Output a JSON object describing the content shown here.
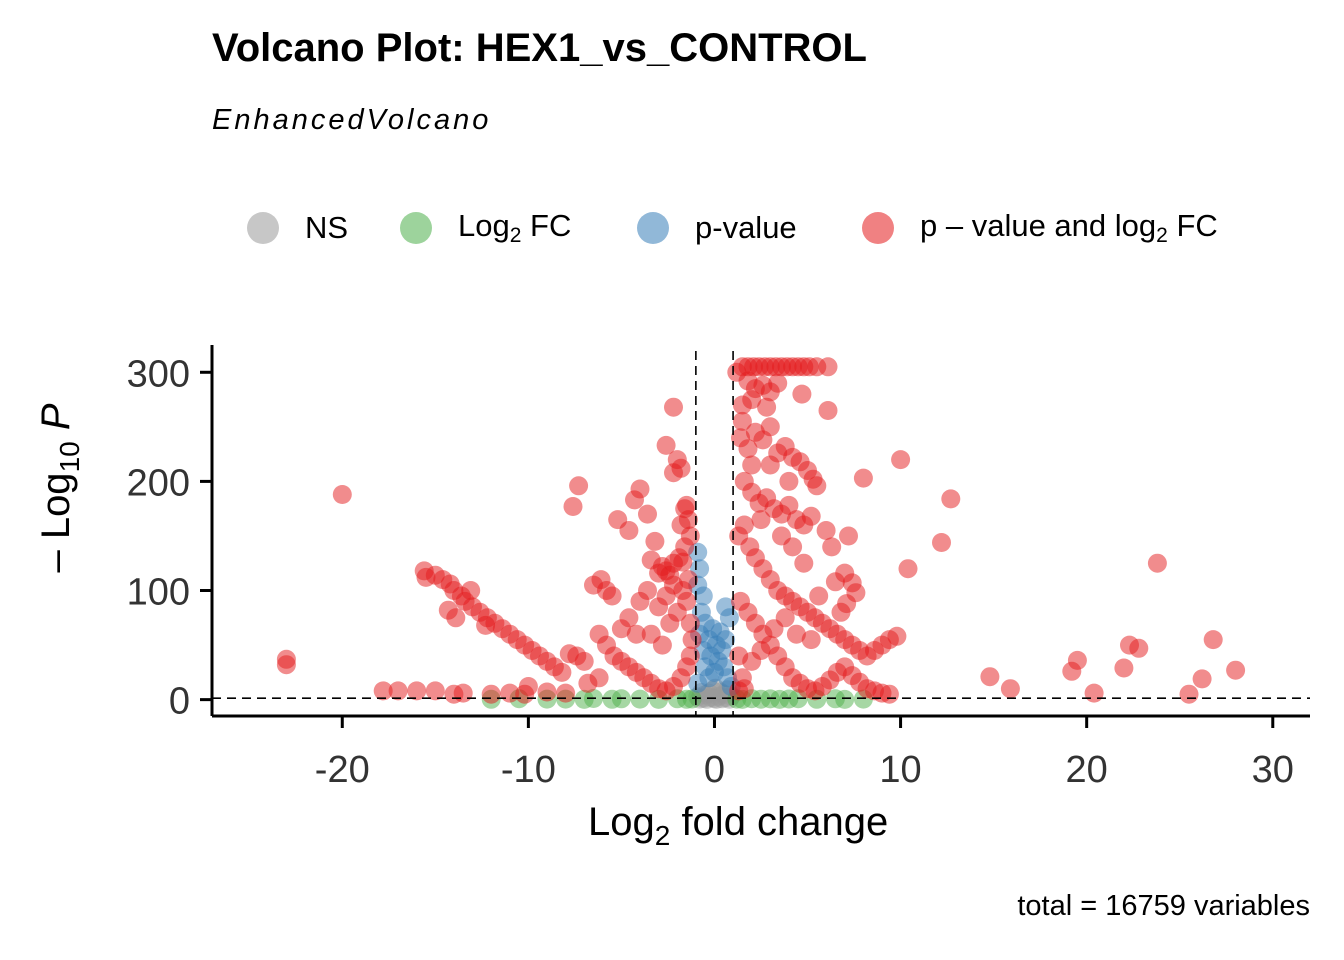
{
  "title": "Volcano Plot: HEX1_vs_CONTROL",
  "subtitle": "EnhancedVolcano",
  "caption": "total = 16759 variables",
  "legend": [
    {
      "key": "ns",
      "label": "NS",
      "color": "#999999"
    },
    {
      "key": "fc",
      "label_main": "Log",
      "label_sub": "2",
      "label_rest": " FC",
      "color": "#4daf4a"
    },
    {
      "key": "p",
      "label": "p-value",
      "color": "#377eb8"
    },
    {
      "key": "pfc",
      "label_main": "p – value and log",
      "label_sub": "2",
      "label_rest": " FC",
      "color": "#e41a1c"
    }
  ],
  "chart_data": {
    "type": "scatter",
    "title": "Volcano Plot: HEX1_vs_CONTROL",
    "subtitle": "EnhancedVolcano",
    "xlabel_main": "Log",
    "xlabel_sub": "2",
    "xlabel_rest": " fold change",
    "ylabel_prefix": "– Log",
    "ylabel_sub": "10",
    "ylabel_var": "P",
    "xlim": [
      -27,
      32
    ],
    "ylim": [
      -15,
      325
    ],
    "xticks": [
      -20,
      -10,
      0,
      10,
      20,
      30
    ],
    "yticks": [
      0,
      100,
      200,
      300
    ],
    "fc_cutoff_lines": [
      -1,
      1
    ],
    "p_cutoff_line": 1.3,
    "grid": false,
    "legend_position": "top",
    "point_opacity": 0.5,
    "series": [
      {
        "name": "NS",
        "color": "#999999",
        "points": [
          [
            -0.8,
            0.5
          ],
          [
            -0.6,
            1.2
          ],
          [
            -0.4,
            0.3
          ],
          [
            -0.2,
            2.0
          ],
          [
            0.0,
            1.0
          ],
          [
            0.2,
            3.0
          ],
          [
            0.4,
            0.8
          ],
          [
            0.6,
            1.8
          ],
          [
            0.8,
            0.4
          ],
          [
            -0.5,
            4.5
          ],
          [
            0.5,
            5.0
          ],
          [
            -0.9,
            2.5
          ],
          [
            0.9,
            3.2
          ],
          [
            -0.3,
            6.0
          ],
          [
            0.3,
            7.0
          ],
          [
            0.1,
            0.2
          ],
          [
            -0.1,
            8.5
          ],
          [
            0.7,
            9.0
          ],
          [
            -0.7,
            6.5
          ],
          [
            0.05,
            10.5
          ]
        ]
      },
      {
        "name": "Log2 FC",
        "color": "#4daf4a",
        "points": [
          [
            -8.0,
            0.5
          ],
          [
            -7.0,
            0.2
          ],
          [
            -6.5,
            1.0
          ],
          [
            -5.5,
            0.3
          ],
          [
            -5.0,
            0.8
          ],
          [
            -4.0,
            0.5
          ],
          [
            -3.0,
            0.2
          ],
          [
            -2.0,
            0.8
          ],
          [
            -1.5,
            0.3
          ],
          [
            -1.2,
            0.6
          ],
          [
            1.2,
            0.5
          ],
          [
            1.5,
            0.2
          ],
          [
            2.0,
            0.9
          ],
          [
            2.5,
            0.4
          ],
          [
            3.0,
            0.7
          ],
          [
            3.5,
            0.2
          ],
          [
            4.0,
            0.6
          ],
          [
            4.5,
            0.9
          ],
          [
            5.5,
            0.3
          ],
          [
            6.5,
            0.8
          ],
          [
            7.0,
            0.2
          ],
          [
            8.0,
            0.5
          ],
          [
            -12.0,
            0.3
          ],
          [
            -10.5,
            0.9
          ],
          [
            -9.0,
            0.5
          ]
        ]
      },
      {
        "name": "p-value",
        "color": "#377eb8",
        "points": [
          [
            -0.9,
            135
          ],
          [
            -0.8,
            120
          ],
          [
            -0.9,
            105
          ],
          [
            -0.6,
            95
          ],
          [
            -0.7,
            80
          ],
          [
            -0.5,
            70
          ],
          [
            -0.8,
            60
          ],
          [
            -0.3,
            55
          ],
          [
            -0.6,
            45
          ],
          [
            -0.2,
            40
          ],
          [
            -0.5,
            30
          ],
          [
            0.0,
            25
          ],
          [
            -0.3,
            20
          ],
          [
            0.2,
            35
          ],
          [
            0.4,
            45
          ],
          [
            0.6,
            55
          ],
          [
            0.3,
            62
          ],
          [
            0.8,
            75
          ],
          [
            0.5,
            30
          ],
          [
            0.7,
            20
          ],
          [
            -0.9,
            15
          ],
          [
            0.9,
            12
          ],
          [
            0.1,
            50
          ],
          [
            -0.1,
            65
          ],
          [
            0.6,
            85
          ]
        ]
      },
      {
        "name": "p – value and log2 FC",
        "color": "#e41a1c",
        "points": [
          [
            -23,
            37
          ],
          [
            -23,
            32
          ],
          [
            -20,
            188
          ],
          [
            -17.8,
            8
          ],
          [
            -17,
            8
          ],
          [
            -16,
            8
          ],
          [
            -15.6,
            118
          ],
          [
            -15.5,
            112
          ],
          [
            -15,
            114
          ],
          [
            -14.6,
            110
          ],
          [
            -14.2,
            106
          ],
          [
            -14,
            100
          ],
          [
            -13.6,
            95
          ],
          [
            -13.4,
            90
          ],
          [
            -13,
            85
          ],
          [
            -12.6,
            80
          ],
          [
            -12.2,
            75
          ],
          [
            -11.8,
            70
          ],
          [
            -11.4,
            65
          ],
          [
            -11,
            60
          ],
          [
            -10.6,
            55
          ],
          [
            -10.2,
            50
          ],
          [
            -9.8,
            45
          ],
          [
            -9.4,
            40
          ],
          [
            -9,
            35
          ],
          [
            -8.6,
            30
          ],
          [
            -8.2,
            25
          ],
          [
            -14.3,
            82
          ],
          [
            -13.1,
            100
          ],
          [
            -12.3,
            68
          ],
          [
            -13.9,
            75
          ],
          [
            -15,
            8
          ],
          [
            -14,
            5
          ],
          [
            -13.5,
            6
          ],
          [
            -12,
            5
          ],
          [
            -11,
            6
          ],
          [
            -10.2,
            5
          ],
          [
            -9,
            7
          ],
          [
            -8,
            6
          ],
          [
            -10,
            12
          ],
          [
            -7.8,
            42
          ],
          [
            -7.4,
            40
          ],
          [
            -7,
            35
          ],
          [
            -7.6,
            177
          ],
          [
            -7.3,
            196
          ],
          [
            -6.5,
            105
          ],
          [
            -6.1,
            110
          ],
          [
            -5.8,
            100
          ],
          [
            -5.5,
            95
          ],
          [
            -5.2,
            165
          ],
          [
            -4.6,
            155
          ],
          [
            -4.3,
            183
          ],
          [
            -4.0,
            193
          ],
          [
            -3.6,
            170
          ],
          [
            -3.4,
            128
          ],
          [
            -3.2,
            145
          ],
          [
            -3.0,
            116
          ],
          [
            -2.8,
            122
          ],
          [
            -2.6,
            118
          ],
          [
            -2.4,
            114
          ],
          [
            -2.2,
            125
          ],
          [
            -1.7,
            126
          ],
          [
            -1.5,
            178
          ],
          [
            -1.8,
            160
          ],
          [
            -2.2,
            208
          ],
          [
            -2.0,
            220
          ],
          [
            -1.8,
            212
          ],
          [
            -2.6,
            233
          ],
          [
            -2.2,
            268
          ],
          [
            -6.2,
            60
          ],
          [
            -5.8,
            50
          ],
          [
            -5.4,
            40
          ],
          [
            -5.0,
            35
          ],
          [
            -4.6,
            30
          ],
          [
            -4.2,
            25
          ],
          [
            -3.8,
            20
          ],
          [
            -3.4,
            15
          ],
          [
            -3.0,
            10
          ],
          [
            -2.6,
            8
          ],
          [
            -2.2,
            12
          ],
          [
            -1.8,
            20
          ],
          [
            -1.5,
            30
          ],
          [
            -1.3,
            40
          ],
          [
            -1.2,
            55
          ],
          [
            -1.3,
            70
          ],
          [
            -1.5,
            90
          ],
          [
            -1.4,
            110
          ],
          [
            -1.6,
            140
          ],
          [
            -1.3,
            150
          ],
          [
            -1.4,
            165
          ],
          [
            -4.6,
            75
          ],
          [
            -4.0,
            90
          ],
          [
            -3.6,
            100
          ],
          [
            -3.0,
            85
          ],
          [
            -2.6,
            95
          ],
          [
            -2.2,
            105
          ],
          [
            -1.9,
            130
          ],
          [
            -4.2,
            60
          ],
          [
            -3.4,
            60
          ],
          [
            -2.8,
            50
          ],
          [
            -2.4,
            70
          ],
          [
            -2.0,
            80
          ],
          [
            -1.7,
            100
          ],
          [
            -6.8,
            15
          ],
          [
            -6.2,
            20
          ],
          [
            -5.0,
            65
          ],
          [
            -1.6,
            175
          ],
          [
            1.2,
            300
          ],
          [
            1.5,
            305
          ],
          [
            1.8,
            305
          ],
          [
            2.1,
            305
          ],
          [
            2.4,
            305
          ],
          [
            2.7,
            305
          ],
          [
            3.0,
            305
          ],
          [
            3.3,
            305
          ],
          [
            3.6,
            305
          ],
          [
            3.9,
            305
          ],
          [
            4.2,
            305
          ],
          [
            4.5,
            305
          ],
          [
            4.8,
            305
          ],
          [
            5.1,
            305
          ],
          [
            5.5,
            305
          ],
          [
            6.1,
            305
          ],
          [
            1.8,
            292
          ],
          [
            2.2,
            285
          ],
          [
            2.6,
            288
          ],
          [
            3.0,
            282
          ],
          [
            3.4,
            290
          ],
          [
            2.0,
            275
          ],
          [
            2.8,
            268
          ],
          [
            1.5,
            270
          ],
          [
            4.7,
            280
          ],
          [
            6.1,
            265
          ],
          [
            1.4,
            240
          ],
          [
            1.8,
            230
          ],
          [
            2.2,
            245
          ],
          [
            2.6,
            238
          ],
          [
            3.0,
            250
          ],
          [
            3.4,
            226
          ],
          [
            3.8,
            232
          ],
          [
            4.2,
            222
          ],
          [
            4.6,
            218
          ],
          [
            5.0,
            210
          ],
          [
            5.3,
            202
          ],
          [
            5.5,
            196
          ],
          [
            1.6,
            200
          ],
          [
            2.0,
            190
          ],
          [
            2.4,
            180
          ],
          [
            2.8,
            185
          ],
          [
            3.2,
            175
          ],
          [
            3.6,
            170
          ],
          [
            4.0,
            178
          ],
          [
            4.4,
            165
          ],
          [
            4.8,
            160
          ],
          [
            5.2,
            168
          ],
          [
            6.0,
            155
          ],
          [
            6.3,
            140
          ],
          [
            7.2,
            150
          ],
          [
            1.3,
            150
          ],
          [
            1.6,
            160
          ],
          [
            1.9,
            140
          ],
          [
            2.2,
            130
          ],
          [
            2.6,
            120
          ],
          [
            3.0,
            110
          ],
          [
            3.4,
            100
          ],
          [
            3.8,
            95
          ],
          [
            4.2,
            90
          ],
          [
            4.6,
            85
          ],
          [
            5.0,
            80
          ],
          [
            5.4,
            75
          ],
          [
            5.8,
            70
          ],
          [
            6.2,
            65
          ],
          [
            6.6,
            60
          ],
          [
            7.0,
            55
          ],
          [
            7.4,
            50
          ],
          [
            7.8,
            45
          ],
          [
            8.2,
            40
          ],
          [
            8.6,
            45
          ],
          [
            9.0,
            50
          ],
          [
            9.4,
            55
          ],
          [
            9.8,
            58
          ],
          [
            1.4,
            90
          ],
          [
            1.8,
            80
          ],
          [
            2.2,
            70
          ],
          [
            2.6,
            60
          ],
          [
            3.0,
            50
          ],
          [
            3.4,
            40
          ],
          [
            3.8,
            30
          ],
          [
            4.2,
            20
          ],
          [
            4.6,
            15
          ],
          [
            5.0,
            10
          ],
          [
            5.4,
            8
          ],
          [
            5.8,
            12
          ],
          [
            6.2,
            18
          ],
          [
            6.6,
            25
          ],
          [
            7.0,
            30
          ],
          [
            7.4,
            22
          ],
          [
            7.8,
            16
          ],
          [
            8.2,
            10
          ],
          [
            8.6,
            8
          ],
          [
            9.0,
            6
          ],
          [
            9.4,
            5
          ],
          [
            6.5,
            108
          ],
          [
            7.0,
            116
          ],
          [
            7.4,
            107
          ],
          [
            7.6,
            98
          ],
          [
            7.1,
            88
          ],
          [
            6.8,
            80
          ],
          [
            1.3,
            40
          ],
          [
            1.5,
            20
          ],
          [
            1.6,
            10
          ],
          [
            1.3,
            8
          ],
          [
            2.0,
            35
          ],
          [
            2.5,
            45
          ],
          [
            3.2,
            65
          ],
          [
            3.8,
            75
          ],
          [
            4.4,
            60
          ],
          [
            5.2,
            55
          ],
          [
            5.6,
            95
          ],
          [
            4.8,
            125
          ],
          [
            4.2,
            140
          ],
          [
            3.6,
            150
          ],
          [
            2.5,
            165
          ],
          [
            2.0,
            215
          ],
          [
            1.5,
            255
          ],
          [
            3.0,
            215
          ],
          [
            4.0,
            200
          ],
          [
            8.0,
            203
          ],
          [
            10.0,
            220
          ],
          [
            10.4,
            120
          ],
          [
            12.2,
            144
          ],
          [
            12.7,
            184
          ],
          [
            14.8,
            21
          ],
          [
            15.9,
            10
          ],
          [
            19.2,
            26
          ],
          [
            19.5,
            36
          ],
          [
            20.4,
            6
          ],
          [
            22.0,
            29
          ],
          [
            22.3,
            50
          ],
          [
            22.8,
            47
          ],
          [
            23.8,
            125
          ],
          [
            25.5,
            5
          ],
          [
            26.2,
            19
          ],
          [
            26.8,
            55
          ],
          [
            28.0,
            27
          ]
        ]
      }
    ]
  }
}
